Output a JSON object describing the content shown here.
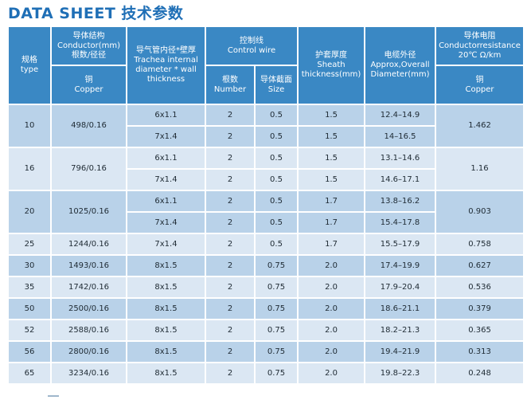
{
  "title": "DATA SHEET 技术参数",
  "headers": {
    "type": "规格\ntype",
    "conductor": "导体结构\nConductor(mm)\n根数/径径",
    "conductor_sub": "铜\nCopper",
    "trachea": "导气管内径*壁厚\nTrachea internal\ndiameter * wall\nthickness",
    "control": "控制线\nControl wire",
    "control_num": "根数\nNumber",
    "control_size": "导体截面\nSize",
    "sheath": "护套厚度\nSheath\nthickness(mm)",
    "overall": "电缆外径\nApprox,Overall\nDiameter(mm)",
    "resistance": "导体电阻\nConductorresistance\n20℃ Ω/km",
    "resistance_sub": "铜\nCopper"
  },
  "groups": [
    {
      "type": "10",
      "conductor": "498/0.16",
      "resistance": "1.462",
      "rows": [
        {
          "trachea": "6x1.1",
          "number": "2",
          "size": "0.5",
          "sheath": "1.5",
          "diameter": "12.4–14.9"
        },
        {
          "trachea": "7x1.4",
          "number": "2",
          "size": "0.5",
          "sheath": "1.5",
          "diameter": "14–16.5"
        }
      ]
    },
    {
      "type": "16",
      "conductor": "796/0.16",
      "resistance": "1.16",
      "rows": [
        {
          "trachea": "6x1.1",
          "number": "2",
          "size": "0.5",
          "sheath": "1.5",
          "diameter": "13.1–14.6"
        },
        {
          "trachea": "7x1.4",
          "number": "2",
          "size": "0.5",
          "sheath": "1.5",
          "diameter": "14.6–17.1"
        }
      ]
    },
    {
      "type": "20",
      "conductor": "1025/0.16",
      "resistance": "0.903",
      "rows": [
        {
          "trachea": "6x1.1",
          "number": "2",
          "size": "0.5",
          "sheath": "1.7",
          "diameter": "13.8–16.2"
        },
        {
          "trachea": "7x1.4",
          "number": "2",
          "size": "0.5",
          "sheath": "1.7",
          "diameter": "15.4–17.8"
        }
      ]
    },
    {
      "type": "25",
      "conductor": "1244/0.16",
      "resistance": "0.758",
      "rows": [
        {
          "trachea": "7x1.4",
          "number": "2",
          "size": "0.5",
          "sheath": "1.7",
          "diameter": "15.5–17.9"
        }
      ]
    },
    {
      "type": "30",
      "conductor": "1493/0.16",
      "resistance": "0.627",
      "rows": [
        {
          "trachea": "8x1.5",
          "number": "2",
          "size": "0.75",
          "sheath": "2.0",
          "diameter": "17.4–19.9"
        }
      ]
    },
    {
      "type": "35",
      "conductor": "1742/0.16",
      "resistance": "0.536",
      "rows": [
        {
          "trachea": "8x1.5",
          "number": "2",
          "size": "0.75",
          "sheath": "2.0",
          "diameter": "17.9–20.4"
        }
      ]
    },
    {
      "type": "50",
      "conductor": "2500/0.16",
      "resistance": "0.379",
      "rows": [
        {
          "trachea": "8x1.5",
          "number": "2",
          "size": "0.75",
          "sheath": "2.0",
          "diameter": "18.6–21.1"
        }
      ]
    },
    {
      "type": "52",
      "conductor": "2588/0.16",
      "resistance": "0.365",
      "rows": [
        {
          "trachea": "8x1.5",
          "number": "2",
          "size": "0.75",
          "sheath": "2.0",
          "diameter": "18.2–21.3"
        }
      ]
    },
    {
      "type": "56",
      "conductor": "2800/0.16",
      "resistance": "0.313",
      "rows": [
        {
          "trachea": "8x1.5",
          "number": "2",
          "size": "0.75",
          "sheath": "2.0",
          "diameter": "19.4–21.9"
        }
      ]
    },
    {
      "type": "65",
      "conductor": "3234/0.16",
      "resistance": "0.248",
      "rows": [
        {
          "trachea": "8x1.5",
          "number": "2",
          "size": "0.75",
          "sheath": "2.0",
          "diameter": "19.8–22.3"
        }
      ]
    }
  ]
}
